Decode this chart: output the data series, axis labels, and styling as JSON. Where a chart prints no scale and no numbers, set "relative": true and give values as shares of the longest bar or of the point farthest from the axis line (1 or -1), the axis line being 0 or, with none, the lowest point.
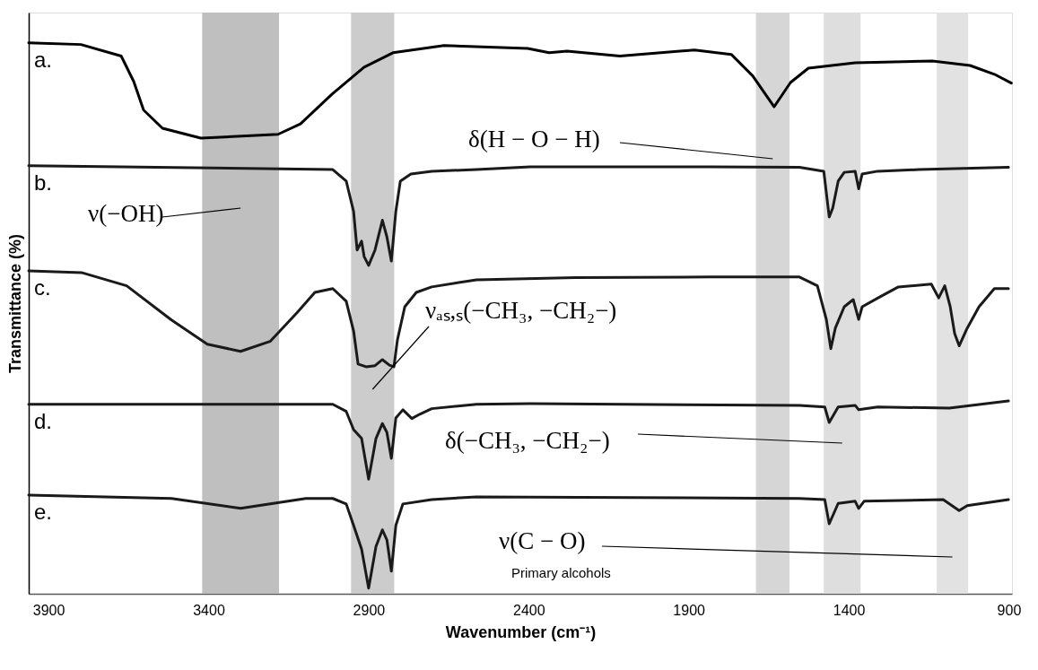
{
  "chart_data": {
    "type": "line",
    "relative": true,
    "xlabel": "Wavenumber (cm⁻¹)",
    "ylabel": "Transmittance (%)",
    "xlim": [
      3962,
      890
    ],
    "xticks": [
      3900,
      3400,
      2900,
      2400,
      1900,
      1400,
      900
    ],
    "tick_labels": "x",
    "grid": false,
    "bands": [
      {
        "axis": "x",
        "from": 3420,
        "to": 3180,
        "label": "ν(−OH)",
        "color": "#bfbfbf"
      },
      {
        "axis": "x",
        "from": 2955,
        "to": 2820,
        "label": "νₐₛ,ₛ(−CH₃, −CH₂−)",
        "color": "#cccccc"
      },
      {
        "axis": "x",
        "from": 1690,
        "to": 1585,
        "label": "δ(H − O − H)",
        "color": "#d6d6d6"
      },
      {
        "axis": "x",
        "from": 1478,
        "to": 1363,
        "label": "δ(−CH₃, −CH₂−)",
        "color": "#dedede"
      },
      {
        "axis": "x",
        "from": 1125,
        "to": 1027,
        "label": "ν(C − O)\nPrimary alcohols",
        "color": "#e2e2e2"
      }
    ],
    "line_style": "solid",
    "series": [
      {
        "name": "a.",
        "color": "#000000",
        "x": [
          3962,
          3799,
          3673,
          3634,
          3603,
          3544,
          3424,
          3183,
          3113,
          3014,
          2914,
          2824,
          2664,
          2403,
          2336,
          2280,
          2115,
          1882,
          1767,
          1700,
          1633,
          1582,
          1526,
          1380,
          1139,
          1021,
          945,
          892
        ],
        "values": [
          1.0,
          0.997,
          0.976,
          0.93,
          0.878,
          0.845,
          0.827,
          0.834,
          0.853,
          0.907,
          0.956,
          0.982,
          0.995,
          0.99,
          0.982,
          0.985,
          0.976,
          0.987,
          0.979,
          0.94,
          0.884,
          0.928,
          0.954,
          0.964,
          0.967,
          0.959,
          0.943,
          0.927
        ]
      },
      {
        "name": "b.",
        "color": "#1a1a1a",
        "x": [
          3962,
          3012,
          2970,
          2947,
          2936,
          2922,
          2914,
          2900,
          2880,
          2857,
          2843,
          2829,
          2815,
          2801,
          2768,
          2703,
          2563,
          2395,
          1834,
          1554,
          1478,
          1461,
          1450,
          1433,
          1414,
          1380,
          1369,
          1358,
          1310,
          1181,
          901
        ],
        "values": [
          0.777,
          0.77,
          0.749,
          0.694,
          0.624,
          0.64,
          0.612,
          0.596,
          0.624,
          0.678,
          0.648,
          0.604,
          0.694,
          0.749,
          0.762,
          0.767,
          0.77,
          0.775,
          0.775,
          0.774,
          0.767,
          0.684,
          0.7,
          0.749,
          0.765,
          0.767,
          0.735,
          0.762,
          0.767,
          0.77,
          0.774
        ]
      },
      {
        "name": "c.",
        "color": "#1a1a1a",
        "x": [
          3962,
          3797,
          3656,
          3516,
          3404,
          3300,
          3208,
          3124,
          3068,
          3012,
          2970,
          2947,
          2933,
          2908,
          2880,
          2857,
          2835,
          2821,
          2810,
          2787,
          2751,
          2703,
          2563,
          2255,
          1834,
          1554,
          1498,
          1470,
          1456,
          1442,
          1414,
          1386,
          1369,
          1358,
          1302,
          1245,
          1142,
          1119,
          1100,
          1083,
          1069,
          1055,
          1030,
          993,
          945,
          901
        ],
        "values": [
          0.586,
          0.583,
          0.559,
          0.497,
          0.453,
          0.44,
          0.458,
          0.51,
          0.547,
          0.554,
          0.531,
          0.477,
          0.417,
          0.412,
          0.414,
          0.425,
          0.415,
          0.412,
          0.461,
          0.521,
          0.547,
          0.557,
          0.57,
          0.574,
          0.575,
          0.575,
          0.559,
          0.498,
          0.445,
          0.482,
          0.521,
          0.534,
          0.498,
          0.521,
          0.539,
          0.557,
          0.562,
          0.537,
          0.559,
          0.521,
          0.472,
          0.45,
          0.482,
          0.521,
          0.554,
          0.554
        ]
      },
      {
        "name": "d.",
        "color": "#1a1a1a",
        "x": [
          3962,
          3012,
          2970,
          2947,
          2922,
          2900,
          2877,
          2857,
          2843,
          2829,
          2815,
          2793,
          2765,
          2740,
          2703,
          2563,
          2395,
          1554,
          1475,
          1461,
          1433,
          1380,
          1369,
          1310,
          1086,
          901
        ],
        "values": [
          0.344,
          0.344,
          0.331,
          0.298,
          0.282,
          0.208,
          0.282,
          0.309,
          0.293,
          0.246,
          0.319,
          0.334,
          0.318,
          0.326,
          0.336,
          0.344,
          0.345,
          0.342,
          0.339,
          0.311,
          0.339,
          0.342,
          0.334,
          0.339,
          0.337,
          0.35
        ]
      },
      {
        "name": "e.",
        "color": "#1a1a1a",
        "x": [
          3962,
          3516,
          3300,
          3096,
          3012,
          2970,
          2947,
          2922,
          2900,
          2877,
          2857,
          2843,
          2829,
          2815,
          2793,
          2703,
          2563,
          1554,
          1475,
          1461,
          1433,
          1380,
          1369,
          1352,
          1105,
          1055,
          1030,
          901
        ],
        "values": [
          0.179,
          0.173,
          0.155,
          0.173,
          0.173,
          0.163,
          0.124,
          0.081,
          0.01,
          0.086,
          0.116,
          0.098,
          0.041,
          0.124,
          0.163,
          0.171,
          0.176,
          0.173,
          0.171,
          0.127,
          0.164,
          0.168,
          0.155,
          0.168,
          0.171,
          0.151,
          0.16,
          0.171
        ]
      }
    ]
  }
}
